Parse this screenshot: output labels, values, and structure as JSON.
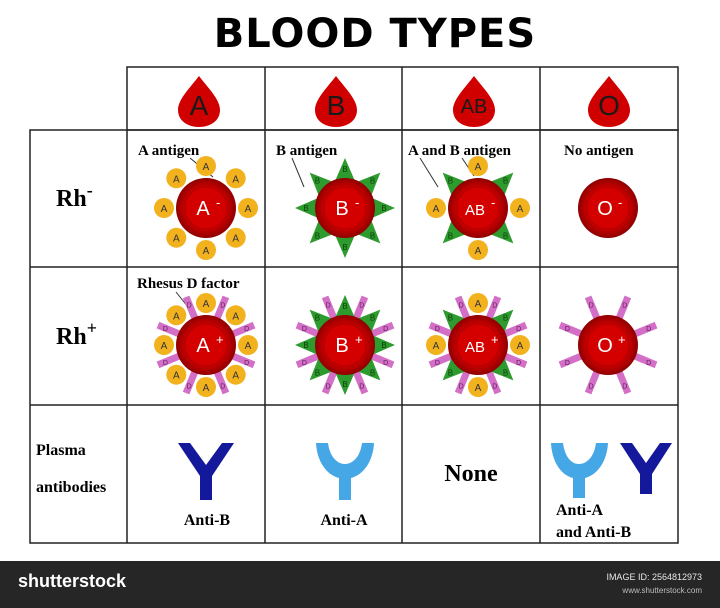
{
  "title": "BLOOD TYPES",
  "columns": [
    "A",
    "B",
    "AB",
    "O"
  ],
  "rows": {
    "rh_neg": {
      "prefix": "Rh",
      "sign": "-"
    },
    "rh_pos": {
      "prefix": "Rh",
      "sign": "+"
    },
    "plasma_line1": "Plasma",
    "plasma_line2": "antibodies"
  },
  "annotations": {
    "a_antigen": "A antigen",
    "b_antigen": "B antigen",
    "ab_antigen": "A and B antigen",
    "no_antigen": "No antigen",
    "rhesus": "Rhesus D factor"
  },
  "cells": {
    "neg": [
      "A",
      "B",
      "AB",
      "O"
    ],
    "pos": [
      "A",
      "B",
      "AB",
      "O"
    ],
    "neg_sign": "-",
    "pos_sign": "+"
  },
  "antigen_marks": {
    "a": "A",
    "b": "B",
    "d": "D"
  },
  "antibodies": {
    "a_col": "Anti-B",
    "b_col": "Anti-A",
    "ab_col": "None",
    "o_col_line1": "Anti-A",
    "o_col_line2": "and Anti-B"
  },
  "footer": {
    "brand": "shutterstock",
    "image_id": "IMAGE ID: 2564812973",
    "site": "www.shutterstock.com"
  },
  "colors": {
    "blood": "#d10000",
    "blood_dark": "#8b0000",
    "antigen_a": "#f2b21e",
    "antigen_b": "#2e9b2e",
    "rhesus": "#d36fc6",
    "antibody_dark": "#14189a",
    "antibody_light": "#45a7e6"
  }
}
